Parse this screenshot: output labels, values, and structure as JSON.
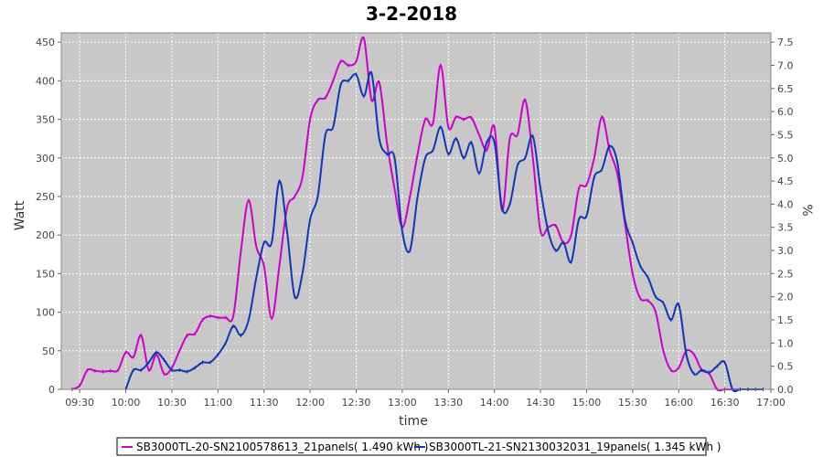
{
  "chart_data": {
    "type": "line",
    "title": "3-2-2018",
    "xlabel": "time",
    "ylabel": "Watt",
    "y2label": "%",
    "ylim": [
      0,
      462
    ],
    "y2lim": [
      0,
      7.7
    ],
    "xlim": [
      "09:18",
      "17:00"
    ],
    "grid": true,
    "legend_position": "bottom",
    "x_ticks": [
      "09:30",
      "10:00",
      "10:30",
      "11:00",
      "11:30",
      "12:00",
      "12:30",
      "13:00",
      "13:30",
      "14:00",
      "14:30",
      "15:00",
      "15:30",
      "16:00",
      "16:30",
      "17:00"
    ],
    "y_ticks": [
      0,
      50,
      100,
      150,
      200,
      250,
      300,
      350,
      400,
      450
    ],
    "y2_ticks": [
      "0.0",
      "0.5",
      "1.0",
      "1.5",
      "2.0",
      "2.5",
      "3.0",
      "3.5",
      "4.0",
      "4.5",
      "5.0",
      "5.5",
      "6.0",
      "6.5",
      "7.0",
      "7.5"
    ],
    "colors": {
      "plot_bg": "#c8c8c8",
      "grid": "#ffffff"
    },
    "series": [
      {
        "name": "SB3000TL-20-SN2100578613_21panels( 1.490 kWh )",
        "color": "#cc00cc",
        "x": [
          "09:25",
          "09:30",
          "09:35",
          "09:40",
          "09:45",
          "09:50",
          "09:55",
          "10:00",
          "10:05",
          "10:10",
          "10:15",
          "10:20",
          "10:25",
          "10:30",
          "10:35",
          "10:40",
          "10:45",
          "10:50",
          "10:55",
          "11:00",
          "11:05",
          "11:10",
          "11:15",
          "11:20",
          "11:25",
          "11:30",
          "11:35",
          "11:40",
          "11:45",
          "11:50",
          "11:55",
          "12:00",
          "12:05",
          "12:10",
          "12:15",
          "12:20",
          "12:25",
          "12:30",
          "12:35",
          "12:40",
          "12:45",
          "12:50",
          "12:55",
          "13:00",
          "13:05",
          "13:10",
          "13:15",
          "13:20",
          "13:25",
          "13:30",
          "13:35",
          "13:40",
          "13:45",
          "13:50",
          "13:55",
          "14:00",
          "14:05",
          "14:10",
          "14:15",
          "14:20",
          "14:25",
          "14:30",
          "14:35",
          "14:40",
          "14:45",
          "14:50",
          "14:55",
          "15:00",
          "15:05",
          "15:10",
          "15:15",
          "15:20",
          "15:25",
          "15:30",
          "15:35",
          "15:40",
          "15:45",
          "15:50",
          "15:55",
          "16:00",
          "16:05",
          "16:10",
          "16:15",
          "16:20",
          "16:25",
          "16:30",
          "16:35",
          "16:40",
          "16:45"
        ],
        "values": [
          0,
          5,
          25,
          24,
          23,
          24,
          25,
          48,
          42,
          70,
          25,
          45,
          20,
          28,
          50,
          70,
          72,
          90,
          95,
          93,
          93,
          95,
          180,
          245,
          185,
          160,
          92,
          160,
          235,
          250,
          275,
          350,
          375,
          378,
          400,
          425,
          420,
          425,
          455,
          375,
          398,
          320,
          260,
          210,
          250,
          305,
          350,
          345,
          420,
          340,
          353,
          350,
          352,
          330,
          310,
          340,
          232,
          325,
          330,
          375,
          300,
          205,
          210,
          212,
          190,
          200,
          260,
          265,
          300,
          353,
          310,
          280,
          215,
          150,
          118,
          115,
          100,
          50,
          25,
          28,
          50,
          45,
          25,
          20,
          0,
          0,
          0,
          0,
          0
        ]
      },
      {
        "name": "SB3000TL-21-SN2130032031_19panels( 1.345 kWh )",
        "color": "#1035b8",
        "x": [
          "10:00",
          "10:05",
          "10:10",
          "10:15",
          "10:20",
          "10:25",
          "10:30",
          "10:35",
          "10:40",
          "10:45",
          "10:50",
          "10:55",
          "11:00",
          "11:05",
          "11:10",
          "11:15",
          "11:20",
          "11:25",
          "11:30",
          "11:35",
          "11:40",
          "11:45",
          "11:50",
          "11:55",
          "12:00",
          "12:05",
          "12:10",
          "12:15",
          "12:20",
          "12:25",
          "12:30",
          "12:35",
          "12:40",
          "12:45",
          "12:50",
          "12:55",
          "13:00",
          "13:05",
          "13:10",
          "13:15",
          "13:20",
          "13:25",
          "13:30",
          "13:35",
          "13:40",
          "13:45",
          "13:50",
          "13:55",
          "14:00",
          "14:05",
          "14:10",
          "14:15",
          "14:20",
          "14:25",
          "14:30",
          "14:35",
          "14:40",
          "14:45",
          "14:50",
          "14:55",
          "15:00",
          "15:05",
          "15:10",
          "15:15",
          "15:20",
          "15:25",
          "15:30",
          "15:35",
          "15:40",
          "15:45",
          "15:50",
          "15:55",
          "16:00",
          "16:05",
          "16:10",
          "16:15",
          "16:20",
          "16:25",
          "16:30",
          "16:35",
          "16:40",
          "16:45",
          "16:50",
          "16:55"
        ],
        "values": [
          0,
          25,
          25,
          35,
          48,
          38,
          25,
          25,
          23,
          28,
          35,
          35,
          45,
          60,
          82,
          70,
          90,
          145,
          190,
          190,
          270,
          205,
          120,
          150,
          220,
          250,
          330,
          340,
          395,
          400,
          408,
          380,
          410,
          325,
          305,
          300,
          205,
          180,
          250,
          300,
          310,
          340,
          305,
          325,
          300,
          320,
          280,
          320,
          320,
          235,
          240,
          290,
          300,
          328,
          260,
          205,
          180,
          190,
          165,
          220,
          225,
          275,
          285,
          315,
          295,
          220,
          190,
          160,
          145,
          120,
          112,
          90,
          110,
          45,
          20,
          25,
          22,
          30,
          35,
          0,
          0,
          0,
          0,
          0
        ]
      }
    ]
  }
}
